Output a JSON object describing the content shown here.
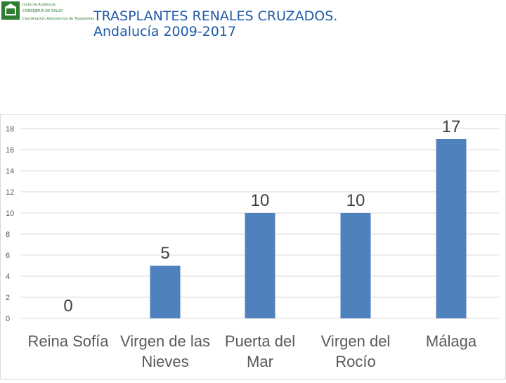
{
  "logo": {
    "line1": "Junta de Andalucía",
    "line2": "CONSEJERÍA DE SALUD",
    "line3": "Coordinación Autonómica de Trasplantes"
  },
  "header": {
    "title_line1": "TRASPLANTES RENALES CRUZADOS.",
    "title_line2": "Andalucía 2009-2017"
  },
  "chart_data": {
    "type": "bar",
    "categories": [
      [
        "Reina Sofía"
      ],
      [
        "Virgen de las",
        "Nieves"
      ],
      [
        "Puerta del",
        "Mar"
      ],
      [
        "Virgen del",
        "Rocío"
      ],
      [
        "Málaga"
      ]
    ],
    "values": [
      0,
      5,
      10,
      10,
      17
    ],
    "data_labels": [
      "0",
      "5",
      "10",
      "10",
      "17"
    ],
    "yticks": [
      "0",
      "2",
      "4",
      "6",
      "8",
      "10",
      "12",
      "14",
      "16",
      "18"
    ],
    "ylim": [
      0,
      18
    ],
    "grid": true,
    "bar_color": "#4f81bd"
  }
}
